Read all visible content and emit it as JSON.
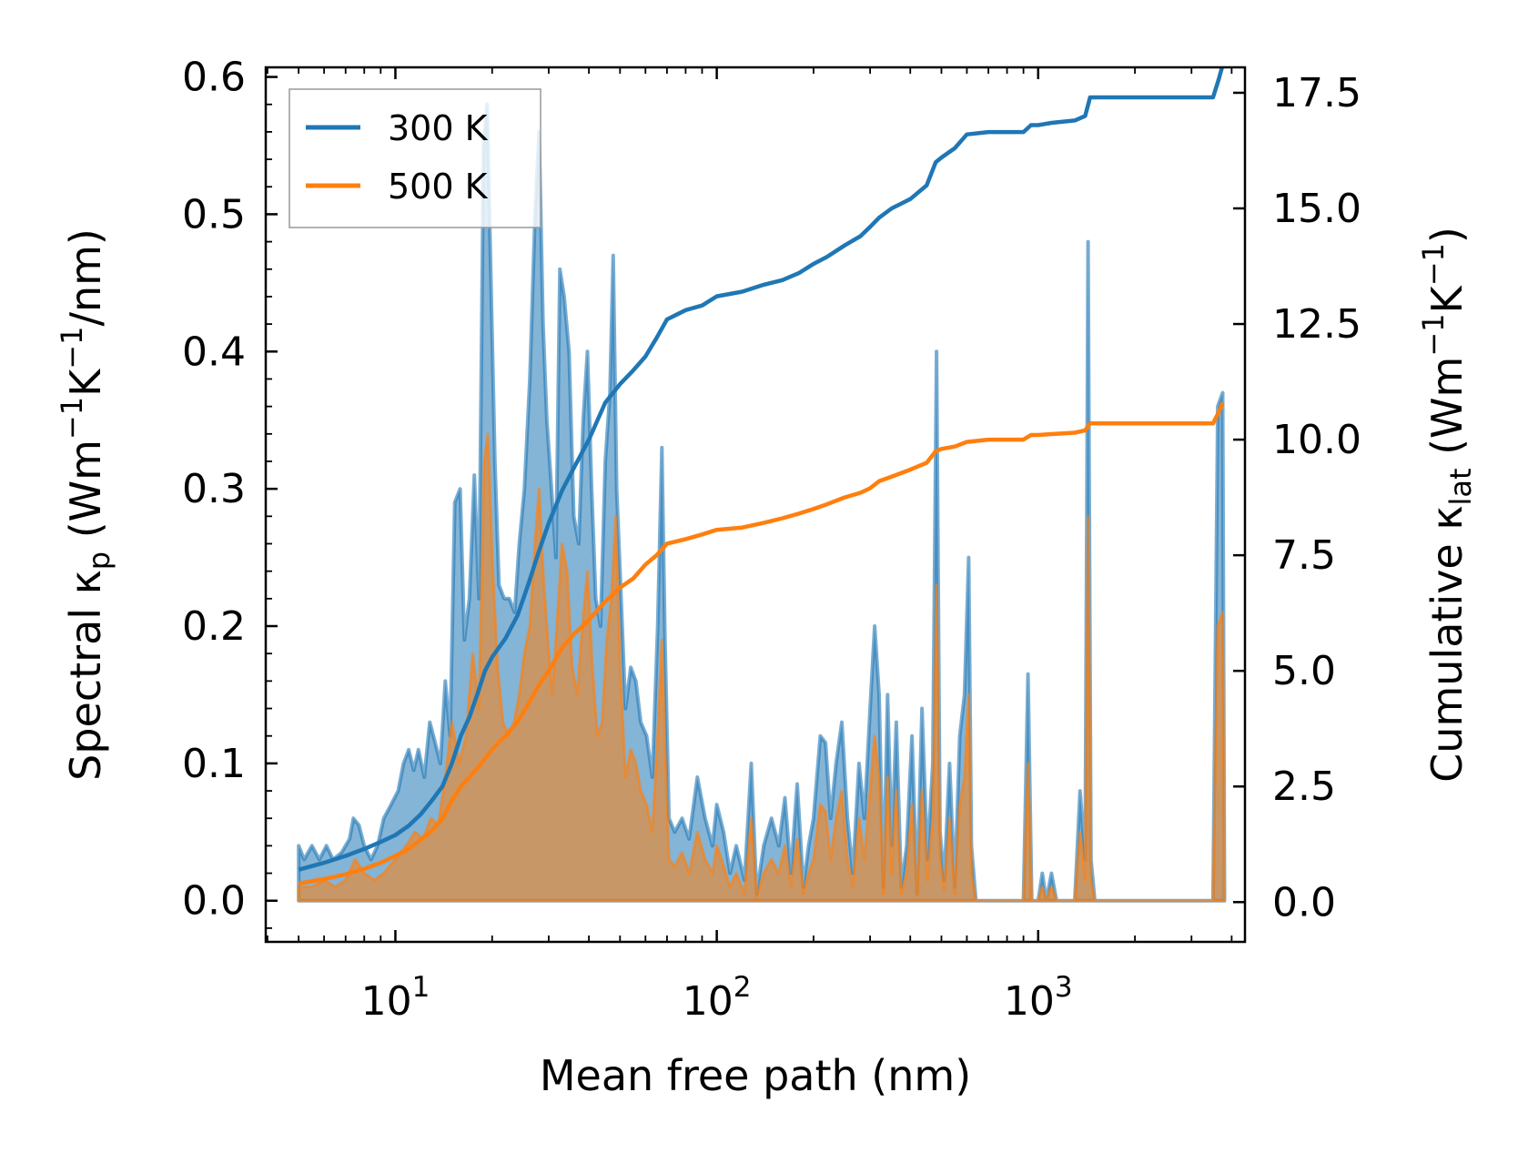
{
  "chart_data": {
    "type": "area",
    "title": "",
    "xlabel": "Mean free path (nm)",
    "ylabel_left": {
      "text": "Spectral κ",
      "sub": "p",
      "rest": " (Wm",
      "sup1": "−1",
      "mid": "K",
      "sup2": "−1",
      "end": "/nm)"
    },
    "ylabel_right": {
      "text": "Cumulative κ",
      "sub": "lat",
      "rest": " (Wm",
      "sup1": "−1",
      "mid": "K",
      "sup2": "−1",
      "end": ")"
    },
    "xscale": "log",
    "xlim": [
      3.95,
      4400
    ],
    "ylim_left": [
      -0.03,
      0.607
    ],
    "ylim_right": [
      -0.86,
      18.05
    ],
    "xticks": [
      {
        "base": "10",
        "exp": "1",
        "value": 10
      },
      {
        "base": "10",
        "exp": "2",
        "value": 100
      },
      {
        "base": "10",
        "exp": "3",
        "value": 1000
      }
    ],
    "yticks_left": [
      "0.0",
      "0.1",
      "0.2",
      "0.3",
      "0.4",
      "0.5",
      "0.6"
    ],
    "yticks_right": [
      "0.0",
      "2.5",
      "5.0",
      "7.5",
      "10.0",
      "12.5",
      "15.0",
      "17.5"
    ],
    "legend": {
      "position": "top-left",
      "entries": [
        {
          "name": "300 K",
          "color": "#1f77b4"
        },
        {
          "name": "500 K",
          "color": "#ff7f0e"
        }
      ]
    },
    "spectral_300K": [
      [
        5.0,
        0.04
      ],
      [
        5.2,
        0.03
      ],
      [
        5.5,
        0.04
      ],
      [
        5.8,
        0.03
      ],
      [
        6.1,
        0.04
      ],
      [
        6.4,
        0.03
      ],
      [
        6.8,
        0.035
      ],
      [
        7.2,
        0.045
      ],
      [
        7.4,
        0.06
      ],
      [
        7.7,
        0.055
      ],
      [
        8.0,
        0.04
      ],
      [
        8.4,
        0.03
      ],
      [
        8.8,
        0.04
      ],
      [
        9.2,
        0.06
      ],
      [
        9.7,
        0.07
      ],
      [
        10.2,
        0.08
      ],
      [
        10.6,
        0.1
      ],
      [
        11.0,
        0.11
      ],
      [
        11.4,
        0.095
      ],
      [
        11.8,
        0.11
      ],
      [
        12.3,
        0.09
      ],
      [
        12.8,
        0.13
      ],
      [
        13.3,
        0.115
      ],
      [
        13.8,
        0.1
      ],
      [
        14.3,
        0.16
      ],
      [
        14.8,
        0.12
      ],
      [
        15.3,
        0.29
      ],
      [
        15.9,
        0.3
      ],
      [
        16.4,
        0.19
      ],
      [
        17.0,
        0.22
      ],
      [
        17.6,
        0.31
      ],
      [
        18.2,
        0.22
      ],
      [
        18.8,
        0.55
      ],
      [
        19.3,
        0.58
      ],
      [
        19.8,
        0.46
      ],
      [
        20.4,
        0.32
      ],
      [
        21.0,
        0.23
      ],
      [
        21.8,
        0.22
      ],
      [
        22.6,
        0.22
      ],
      [
        23.5,
        0.21
      ],
      [
        24.3,
        0.26
      ],
      [
        25.2,
        0.3
      ],
      [
        26.2,
        0.38
      ],
      [
        27.2,
        0.5
      ],
      [
        28.0,
        0.56
      ],
      [
        28.8,
        0.42
      ],
      [
        29.6,
        0.35
      ],
      [
        30.6,
        0.3
      ],
      [
        31.6,
        0.25
      ],
      [
        32.5,
        0.46
      ],
      [
        33.5,
        0.44
      ],
      [
        34.7,
        0.4
      ],
      [
        35.9,
        0.28
      ],
      [
        37.2,
        0.26
      ],
      [
        38.4,
        0.35
      ],
      [
        39.6,
        0.4
      ],
      [
        40.8,
        0.3
      ],
      [
        42.0,
        0.22
      ],
      [
        43.5,
        0.2
      ],
      [
        45.0,
        0.32
      ],
      [
        46.5,
        0.37
      ],
      [
        47.6,
        0.47
      ],
      [
        48.8,
        0.3
      ],
      [
        50.2,
        0.23
      ],
      [
        52.0,
        0.14
      ],
      [
        54.0,
        0.17
      ],
      [
        56.0,
        0.16
      ],
      [
        58.0,
        0.13
      ],
      [
        60.5,
        0.12
      ],
      [
        63.0,
        0.09
      ],
      [
        65.5,
        0.2
      ],
      [
        67.5,
        0.33
      ],
      [
        69.0,
        0.19
      ],
      [
        71.0,
        0.06
      ],
      [
        74.0,
        0.05
      ],
      [
        78.0,
        0.06
      ],
      [
        82.0,
        0.045
      ],
      [
        87.0,
        0.09
      ],
      [
        92.0,
        0.06
      ],
      [
        97.0,
        0.04
      ],
      [
        100.0,
        0.07
      ],
      [
        105.0,
        0.05
      ],
      [
        110.0,
        0.02
      ],
      [
        115.0,
        0.04
      ],
      [
        122.0,
        0.015
      ],
      [
        128.0,
        0.1
      ],
      [
        133.0,
        0.005
      ],
      [
        140.0,
        0.04
      ],
      [
        148.0,
        0.06
      ],
      [
        156.0,
        0.04
      ],
      [
        163.0,
        0.075
      ],
      [
        170.0,
        0.02
      ],
      [
        178.0,
        0.085
      ],
      [
        186.0,
        0.01
      ],
      [
        193.0,
        0.04
      ],
      [
        200.0,
        0.06
      ],
      [
        210.0,
        0.12
      ],
      [
        218.0,
        0.115
      ],
      [
        226.0,
        0.06
      ],
      [
        235.0,
        0.1
      ],
      [
        245.0,
        0.13
      ],
      [
        255.0,
        0.06
      ],
      [
        265.0,
        0.02
      ],
      [
        277.0,
        0.1
      ],
      [
        288.0,
        0.06
      ],
      [
        300.0,
        0.14
      ],
      [
        310.0,
        0.2
      ],
      [
        320.0,
        0.15
      ],
      [
        330.0,
        0.01
      ],
      [
        340.0,
        0.15
      ],
      [
        350.0,
        0.04
      ],
      [
        362.0,
        0.13
      ],
      [
        375.0,
        0.01
      ],
      [
        390.0,
        0.04
      ],
      [
        405.0,
        0.12
      ],
      [
        420.0,
        0.005
      ],
      [
        435.0,
        0.14
      ],
      [
        452.0,
        0.03
      ],
      [
        470.0,
        0.1
      ],
      [
        483.0,
        0.4
      ],
      [
        495.0,
        0.05
      ],
      [
        510.0,
        0.015
      ],
      [
        530.0,
        0.1
      ],
      [
        550.0,
        0.01
      ],
      [
        570.0,
        0.12
      ],
      [
        590.0,
        0.15
      ],
      [
        608.0,
        0.25
      ],
      [
        620.0,
        0.04
      ],
      [
        640.0,
        0.0
      ],
      [
        900.0,
        0.0
      ],
      [
        930.0,
        0.165
      ],
      [
        955.0,
        0.0
      ],
      [
        1000.0,
        0.0
      ],
      [
        1030.0,
        0.02
      ],
      [
        1060.0,
        0.0
      ],
      [
        1100.0,
        0.02
      ],
      [
        1140.0,
        0.0
      ],
      [
        1300.0,
        0.0
      ],
      [
        1350.0,
        0.08
      ],
      [
        1400.0,
        0.03
      ],
      [
        1430.0,
        0.48
      ],
      [
        1460.0,
        0.03
      ],
      [
        1500.0,
        0.0
      ],
      [
        3500.0,
        0.0
      ],
      [
        3620.0,
        0.36
      ],
      [
        3750.0,
        0.37
      ],
      [
        3800.0,
        0.0
      ]
    ],
    "spectral_500K": [
      [
        5.0,
        0.01
      ],
      [
        5.5,
        0.01
      ],
      [
        6.0,
        0.015
      ],
      [
        6.5,
        0.01
      ],
      [
        7.0,
        0.015
      ],
      [
        7.5,
        0.03
      ],
      [
        8.0,
        0.02
      ],
      [
        8.6,
        0.015
      ],
      [
        9.2,
        0.02
      ],
      [
        10.0,
        0.03
      ],
      [
        10.8,
        0.04
      ],
      [
        11.5,
        0.05
      ],
      [
        12.2,
        0.045
      ],
      [
        12.9,
        0.06
      ],
      [
        13.6,
        0.055
      ],
      [
        14.3,
        0.09
      ],
      [
        15.0,
        0.13
      ],
      [
        15.8,
        0.1
      ],
      [
        16.6,
        0.12
      ],
      [
        17.4,
        0.18
      ],
      [
        18.2,
        0.14
      ],
      [
        18.9,
        0.32
      ],
      [
        19.4,
        0.34
      ],
      [
        20.0,
        0.25
      ],
      [
        20.8,
        0.17
      ],
      [
        21.6,
        0.13
      ],
      [
        22.5,
        0.12
      ],
      [
        23.4,
        0.13
      ],
      [
        24.3,
        0.15
      ],
      [
        25.2,
        0.18
      ],
      [
        26.2,
        0.2
      ],
      [
        27.2,
        0.26
      ],
      [
        28.0,
        0.3
      ],
      [
        28.8,
        0.24
      ],
      [
        29.8,
        0.19
      ],
      [
        30.8,
        0.15
      ],
      [
        31.8,
        0.2
      ],
      [
        33.0,
        0.26
      ],
      [
        34.2,
        0.24
      ],
      [
        35.5,
        0.17
      ],
      [
        36.8,
        0.15
      ],
      [
        38.2,
        0.2
      ],
      [
        39.6,
        0.24
      ],
      [
        41.0,
        0.17
      ],
      [
        42.5,
        0.12
      ],
      [
        44.0,
        0.13
      ],
      [
        45.5,
        0.19
      ],
      [
        47.0,
        0.22
      ],
      [
        48.5,
        0.28
      ],
      [
        50.0,
        0.17
      ],
      [
        52.0,
        0.09
      ],
      [
        54.0,
        0.11
      ],
      [
        56.0,
        0.1
      ],
      [
        58.0,
        0.08
      ],
      [
        60.5,
        0.07
      ],
      [
        63.0,
        0.05
      ],
      [
        65.5,
        0.12
      ],
      [
        67.5,
        0.19
      ],
      [
        69.0,
        0.11
      ],
      [
        71.0,
        0.03
      ],
      [
        74.0,
        0.025
      ],
      [
        78.0,
        0.035
      ],
      [
        82.0,
        0.02
      ],
      [
        87.0,
        0.05
      ],
      [
        92.0,
        0.03
      ],
      [
        97.0,
        0.02
      ],
      [
        100.0,
        0.04
      ],
      [
        105.0,
        0.025
      ],
      [
        110.0,
        0.01
      ],
      [
        115.0,
        0.02
      ],
      [
        122.0,
        0.005
      ],
      [
        128.0,
        0.06
      ],
      [
        133.0,
        0.002
      ],
      [
        140.0,
        0.02
      ],
      [
        148.0,
        0.03
      ],
      [
        156.0,
        0.02
      ],
      [
        163.0,
        0.04
      ],
      [
        170.0,
        0.01
      ],
      [
        178.0,
        0.045
      ],
      [
        186.0,
        0.005
      ],
      [
        193.0,
        0.02
      ],
      [
        200.0,
        0.03
      ],
      [
        210.0,
        0.07
      ],
      [
        218.0,
        0.065
      ],
      [
        226.0,
        0.03
      ],
      [
        235.0,
        0.06
      ],
      [
        245.0,
        0.08
      ],
      [
        255.0,
        0.03
      ],
      [
        265.0,
        0.01
      ],
      [
        277.0,
        0.06
      ],
      [
        288.0,
        0.03
      ],
      [
        300.0,
        0.08
      ],
      [
        310.0,
        0.12
      ],
      [
        320.0,
        0.09
      ],
      [
        330.0,
        0.005
      ],
      [
        340.0,
        0.09
      ],
      [
        350.0,
        0.02
      ],
      [
        362.0,
        0.08
      ],
      [
        375.0,
        0.005
      ],
      [
        390.0,
        0.02
      ],
      [
        405.0,
        0.07
      ],
      [
        420.0,
        0.003
      ],
      [
        435.0,
        0.08
      ],
      [
        452.0,
        0.015
      ],
      [
        470.0,
        0.06
      ],
      [
        483.0,
        0.23
      ],
      [
        495.0,
        0.03
      ],
      [
        510.0,
        0.008
      ],
      [
        530.0,
        0.06
      ],
      [
        550.0,
        0.005
      ],
      [
        570.0,
        0.07
      ],
      [
        590.0,
        0.09
      ],
      [
        608.0,
        0.15
      ],
      [
        620.0,
        0.02
      ],
      [
        640.0,
        0.0
      ],
      [
        900.0,
        0.0
      ],
      [
        930.0,
        0.1
      ],
      [
        955.0,
        0.0
      ],
      [
        1000.0,
        0.0
      ],
      [
        1030.0,
        0.01
      ],
      [
        1060.0,
        0.0
      ],
      [
        1100.0,
        0.01
      ],
      [
        1140.0,
        0.0
      ],
      [
        1300.0,
        0.0
      ],
      [
        1350.0,
        0.05
      ],
      [
        1400.0,
        0.015
      ],
      [
        1430.0,
        0.28
      ],
      [
        1460.0,
        0.015
      ],
      [
        1500.0,
        0.0
      ],
      [
        3500.0,
        0.0
      ],
      [
        3620.0,
        0.2
      ],
      [
        3750.0,
        0.21
      ],
      [
        3800.0,
        0.0
      ]
    ],
    "cumulative_300K": [
      [
        5.0,
        0.7
      ],
      [
        6.0,
        0.85
      ],
      [
        7.0,
        1.0
      ],
      [
        8.0,
        1.15
      ],
      [
        9.0,
        1.3
      ],
      [
        10.0,
        1.45
      ],
      [
        11.0,
        1.65
      ],
      [
        12.0,
        1.9
      ],
      [
        13.0,
        2.2
      ],
      [
        14.0,
        2.5
      ],
      [
        15.0,
        3.0
      ],
      [
        16.0,
        3.6
      ],
      [
        17.0,
        4.0
      ],
      [
        18.0,
        4.5
      ],
      [
        19.0,
        5.0
      ],
      [
        20.0,
        5.3
      ],
      [
        22.0,
        5.7
      ],
      [
        24.0,
        6.2
      ],
      [
        26.0,
        6.9
      ],
      [
        28.0,
        7.6
      ],
      [
        30.0,
        8.2
      ],
      [
        33.0,
        8.9
      ],
      [
        36.0,
        9.4
      ],
      [
        40.0,
        10.0
      ],
      [
        45.0,
        10.8
      ],
      [
        50.0,
        11.2
      ],
      [
        55.0,
        11.5
      ],
      [
        60.0,
        11.8
      ],
      [
        65.0,
        12.2
      ],
      [
        70.0,
        12.6
      ],
      [
        80.0,
        12.8
      ],
      [
        90.0,
        12.9
      ],
      [
        100.0,
        13.1
      ],
      [
        120.0,
        13.2
      ],
      [
        140.0,
        13.35
      ],
      [
        160.0,
        13.45
      ],
      [
        180.0,
        13.6
      ],
      [
        200.0,
        13.8
      ],
      [
        220.0,
        13.95
      ],
      [
        250.0,
        14.2
      ],
      [
        280.0,
        14.4
      ],
      [
        300.0,
        14.6
      ],
      [
        320.0,
        14.8
      ],
      [
        350.0,
        15.0
      ],
      [
        400.0,
        15.2
      ],
      [
        450.0,
        15.5
      ],
      [
        480.0,
        16.0
      ],
      [
        500.0,
        16.1
      ],
      [
        550.0,
        16.3
      ],
      [
        600.0,
        16.6
      ],
      [
        700.0,
        16.65
      ],
      [
        900.0,
        16.65
      ],
      [
        950.0,
        16.8
      ],
      [
        1000.0,
        16.8
      ],
      [
        1100.0,
        16.85
      ],
      [
        1300.0,
        16.9
      ],
      [
        1400.0,
        17.0
      ],
      [
        1450.0,
        17.4
      ],
      [
        1500.0,
        17.4
      ],
      [
        3500.0,
        17.4
      ],
      [
        3650.0,
        17.8
      ],
      [
        3750.0,
        18.1
      ]
    ],
    "cumulative_500K": [
      [
        5.0,
        0.4
      ],
      [
        6.0,
        0.5
      ],
      [
        7.0,
        0.6
      ],
      [
        8.0,
        0.72
      ],
      [
        9.0,
        0.85
      ],
      [
        10.0,
        1.0
      ],
      [
        11.0,
        1.15
      ],
      [
        12.0,
        1.35
      ],
      [
        13.0,
        1.55
      ],
      [
        14.0,
        1.8
      ],
      [
        15.0,
        2.2
      ],
      [
        16.0,
        2.5
      ],
      [
        17.0,
        2.7
      ],
      [
        18.0,
        2.9
      ],
      [
        19.0,
        3.1
      ],
      [
        20.0,
        3.3
      ],
      [
        22.0,
        3.6
      ],
      [
        24.0,
        3.9
      ],
      [
        26.0,
        4.3
      ],
      [
        28.0,
        4.7
      ],
      [
        30.0,
        5.0
      ],
      [
        33.0,
        5.5
      ],
      [
        36.0,
        5.8
      ],
      [
        40.0,
        6.1
      ],
      [
        45.0,
        6.5
      ],
      [
        50.0,
        6.8
      ],
      [
        55.0,
        7.0
      ],
      [
        60.0,
        7.3
      ],
      [
        65.0,
        7.5
      ],
      [
        70.0,
        7.75
      ],
      [
        80.0,
        7.85
      ],
      [
        90.0,
        7.95
      ],
      [
        100.0,
        8.05
      ],
      [
        120.0,
        8.1
      ],
      [
        140.0,
        8.2
      ],
      [
        160.0,
        8.3
      ],
      [
        180.0,
        8.4
      ],
      [
        200.0,
        8.5
      ],
      [
        220.0,
        8.6
      ],
      [
        250.0,
        8.75
      ],
      [
        280.0,
        8.85
      ],
      [
        300.0,
        8.95
      ],
      [
        320.0,
        9.1
      ],
      [
        350.0,
        9.2
      ],
      [
        400.0,
        9.35
      ],
      [
        450.0,
        9.5
      ],
      [
        480.0,
        9.75
      ],
      [
        500.0,
        9.8
      ],
      [
        550.0,
        9.85
      ],
      [
        600.0,
        9.95
      ],
      [
        700.0,
        10.0
      ],
      [
        900.0,
        10.0
      ],
      [
        950.0,
        10.1
      ],
      [
        1000.0,
        10.1
      ],
      [
        1100.0,
        10.12
      ],
      [
        1300.0,
        10.15
      ],
      [
        1400.0,
        10.2
      ],
      [
        1450.0,
        10.35
      ],
      [
        1500.0,
        10.35
      ],
      [
        3500.0,
        10.35
      ],
      [
        3650.0,
        10.6
      ],
      [
        3750.0,
        10.8
      ]
    ]
  }
}
